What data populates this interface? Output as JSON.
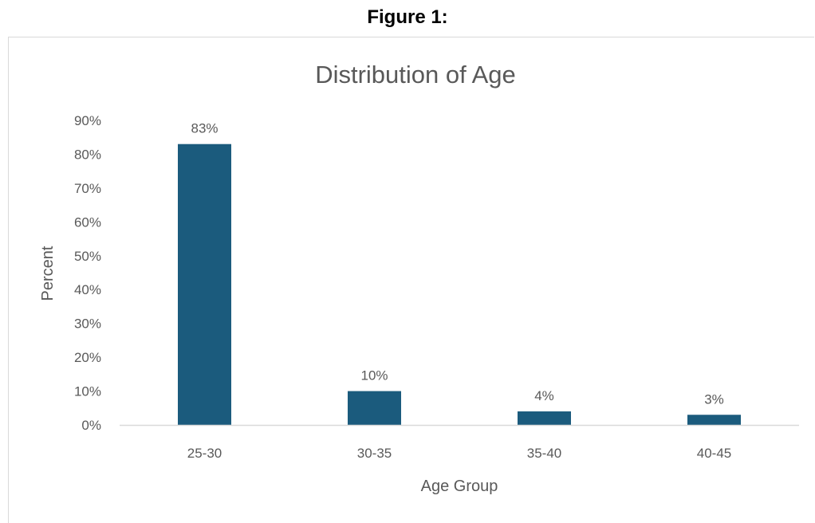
{
  "figure_caption": "Figure 1:",
  "chart_data": {
    "type": "bar",
    "title": "Distribution of Age",
    "xlabel": "Age Group",
    "ylabel": "Percent",
    "categories": [
      "25-30",
      "30-35",
      "35-40",
      "40-45"
    ],
    "values": [
      83,
      10,
      4,
      3
    ],
    "data_labels": [
      "83%",
      "10%",
      "4%",
      "3%"
    ],
    "yticks": [
      "0%",
      "10%",
      "20%",
      "30%",
      "40%",
      "50%",
      "60%",
      "70%",
      "80%",
      "90%"
    ],
    "ylim": [
      0,
      90
    ],
    "grid": false,
    "legend": "none",
    "bar_color": "#1b5b7d",
    "axis_line_color": "#d9d9d9",
    "text_color": "#595959"
  }
}
